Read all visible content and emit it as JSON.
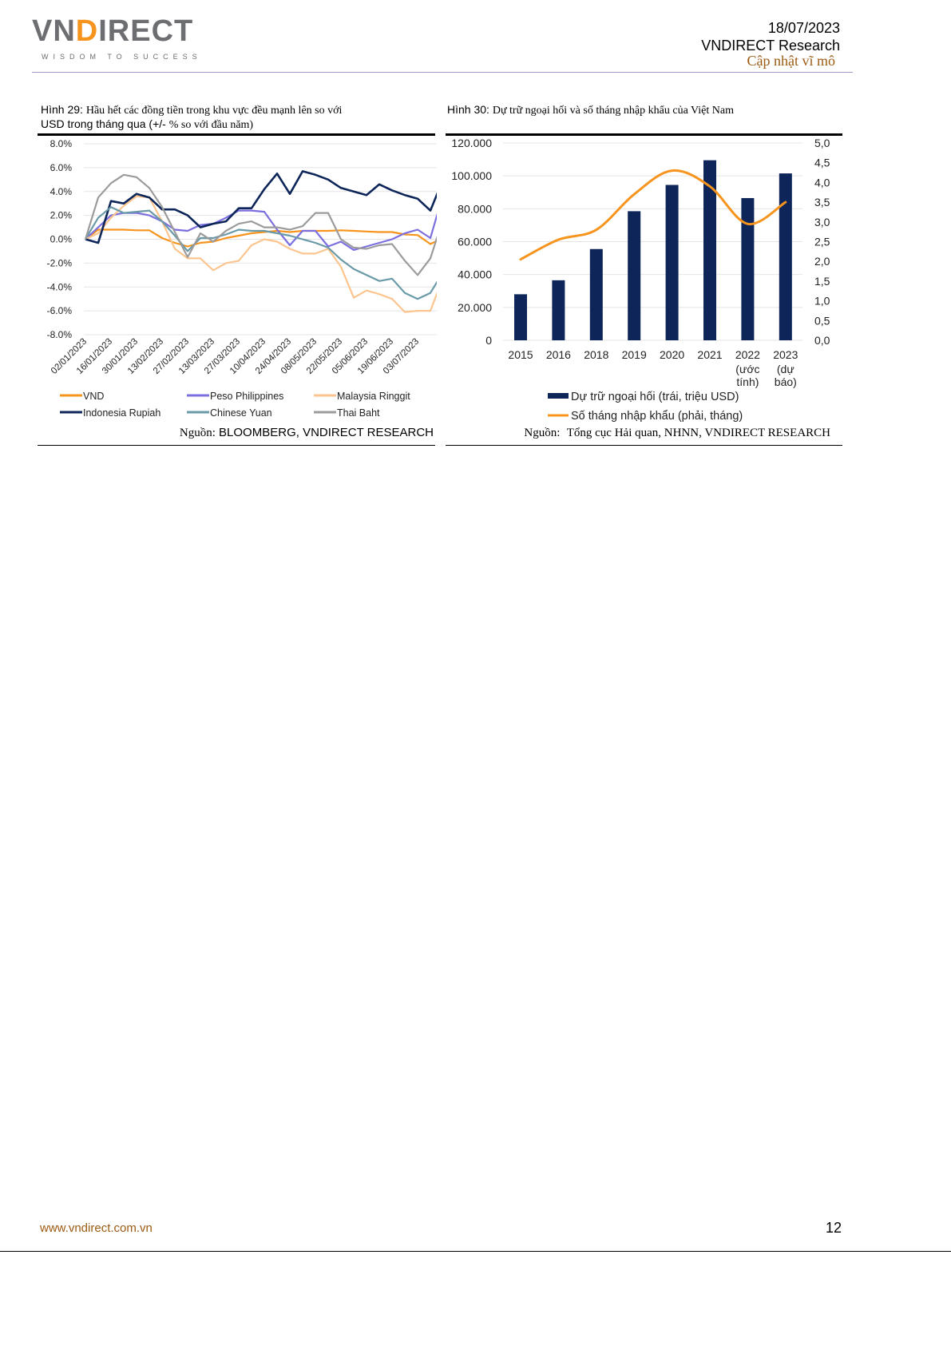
{
  "header": {
    "logo_text": "VNDIRECT",
    "tagline": "WISDOM TO SUCCESS",
    "date": "18/07/2023",
    "company": "VNDIRECT Research",
    "section": "Cập nhật vĩ mô",
    "accent_color": "#9c5a12"
  },
  "figure29": {
    "prefix": "Hình 29:",
    "caption_line1": "Hầu hết các đồng tiền trong khu vực đều mạnh lên so với",
    "caption_line2_prefix": "USD trong tháng qua (+/-",
    "caption_line2_rest": "% so với đầu năm)",
    "source_prefix": "Nguồn:",
    "source_rest": "BLOOMBERG, VNDIRECT RESEARCH"
  },
  "figure30": {
    "prefix": "Hình 30:",
    "caption": "Dự trữ ngoại hối và số tháng nhập khẩu của Việt Nam",
    "source_prefix": "Nguồn:",
    "source_rest": "Tổng cục Hải quan, NHNN, VNDIRECT RESEARCH"
  },
  "chart_data": [
    {
      "type": "line",
      "ylim": [
        -8,
        8
      ],
      "yticks": [
        "8.0%",
        "6.0%",
        "4.0%",
        "2.0%",
        "0.0%",
        "-2.0%",
        "-4.0%",
        "-6.0%",
        "-8.0%"
      ],
      "ytick_values": [
        8,
        6,
        4,
        2,
        0,
        -2,
        -4,
        -6,
        -8
      ],
      "xticks": [
        "02/01/2023",
        "16/01/2023",
        "30/01/2023",
        "13/02/2023",
        "27/02/2023",
        "13/03/2023",
        "27/03/2023",
        "10/04/2023",
        "24/04/2023",
        "08/05/2023",
        "22/05/2023",
        "05/06/2023",
        "19/06/2023",
        "03/07/2023"
      ],
      "grid": true,
      "legend_position": "bottom",
      "x": [
        "02/01/2023",
        "09/01/2023",
        "16/01/2023",
        "23/01/2023",
        "30/01/2023",
        "06/02/2023",
        "13/02/2023",
        "20/02/2023",
        "27/02/2023",
        "06/03/2023",
        "13/03/2023",
        "20/03/2023",
        "27/03/2023",
        "03/04/2023",
        "10/04/2023",
        "17/04/2023",
        "24/04/2023",
        "01/05/2023",
        "08/05/2023",
        "15/05/2023",
        "22/05/2023",
        "29/05/2023",
        "05/06/2023",
        "12/06/2023",
        "19/06/2023",
        "26/06/2023",
        "03/07/2023",
        "10/07/2023",
        "14/07/2023"
      ],
      "series": [
        {
          "name": "VND",
          "color": "#f7941d",
          "values": [
            0,
            0.8,
            0.8,
            0.8,
            0.75,
            0.75,
            0.1,
            -0.3,
            -0.6,
            -0.3,
            -0.2,
            0.1,
            0.3,
            0.5,
            0.6,
            0.7,
            0.6,
            0.7,
            0.7,
            0.7,
            0.75,
            0.7,
            0.65,
            0.6,
            0.6,
            0.4,
            0.35,
            -0.4,
            -0.1
          ]
        },
        {
          "name": "Peso Philippines",
          "color": "#7b6fe0",
          "values": [
            0,
            1.0,
            2.0,
            2.2,
            2.2,
            2.0,
            1.5,
            0.8,
            0.7,
            1.2,
            1.3,
            1.8,
            2.4,
            2.4,
            2.3,
            0.8,
            -0.5,
            0.7,
            0.7,
            -0.6,
            -0.2,
            -0.9,
            -0.6,
            -0.3,
            0,
            0.5,
            0.8,
            0.1,
            2.2
          ]
        },
        {
          "name": "Malaysia Ringgit",
          "color": "#fcc58f",
          "values": [
            0,
            0.5,
            1.8,
            2.8,
            3.6,
            3.5,
            1.5,
            -0.8,
            -1.6,
            -1.6,
            -2.6,
            -2.0,
            -1.8,
            -0.5,
            0,
            -0.2,
            -0.8,
            -1.2,
            -1.2,
            -0.8,
            -2.3,
            -4.9,
            -4.3,
            -4.6,
            -5.0,
            -6.1,
            -6.0,
            -6.0,
            -4.4
          ]
        },
        {
          "name": "Indonesia Rupiah",
          "color": "#0d2559",
          "values": [
            0,
            -0.3,
            3.2,
            3.0,
            3.8,
            3.5,
            2.5,
            2.5,
            2.0,
            1.0,
            1.3,
            1.5,
            2.6,
            2.6,
            4.2,
            5.5,
            3.8,
            5.7,
            5.4,
            5.0,
            4.3,
            4.0,
            3.7,
            4.6,
            4.1,
            3.7,
            3.4,
            2.4,
            3.9
          ]
        },
        {
          "name": "Chinese Yuan",
          "color": "#6a9aa8",
          "values": [
            0,
            1.8,
            2.7,
            2.2,
            2.3,
            2.4,
            1.5,
            0.3,
            -1.0,
            0.1,
            0.1,
            0.4,
            0.8,
            0.7,
            0.7,
            0.5,
            0.3,
            0.0,
            -0.3,
            -0.7,
            -1.7,
            -2.5,
            -3.0,
            -3.5,
            -3.3,
            -4.5,
            -5.0,
            -4.5,
            -3.5
          ]
        },
        {
          "name": "Thai Baht",
          "color": "#9b9b9b",
          "values": [
            0,
            3.5,
            4.7,
            5.4,
            5.2,
            4.3,
            2.7,
            0.6,
            -1.5,
            0.5,
            -0.2,
            0.7,
            1.3,
            1.5,
            1.0,
            1.0,
            0.8,
            1.1,
            2.2,
            2.2,
            0.0,
            -0.7,
            -0.8,
            -0.5,
            -0.4,
            -1.8,
            -3.0,
            -1.6,
            0.3
          ]
        }
      ]
    },
    {
      "type": "bar",
      "categories": [
        "2015",
        "2016",
        "2018",
        "2019",
        "2020",
        "2021",
        "2022",
        "2023"
      ],
      "category_sublabels": [
        [],
        [],
        [],
        [],
        [],
        [],
        [
          "(ước",
          "tính)"
        ],
        [
          "(dự",
          "báo)"
        ]
      ],
      "ylim_left": [
        0,
        120000
      ],
      "yticks_left": [
        "120.000",
        "100.000",
        "80.000",
        "60.000",
        "40.000",
        "20.000",
        "0"
      ],
      "ytick_values_left": [
        120000,
        100000,
        80000,
        60000,
        40000,
        20000,
        0
      ],
      "ylim_right": [
        0,
        5
      ],
      "yticks_right": [
        "5,0",
        "4,5",
        "4,0",
        "3,5",
        "3,0",
        "2,5",
        "2,0",
        "1,5",
        "1,0",
        "0,5",
        "0,0"
      ],
      "ytick_values_right": [
        5,
        4.5,
        4,
        3.5,
        3,
        2.5,
        2,
        1.5,
        1,
        0.5,
        0
      ],
      "grid": true,
      "legend_position": "bottom",
      "series": [
        {
          "name": "Dự trữ ngoại hối (trái, triệu USD)",
          "type": "bar",
          "axis": "left",
          "color": "#0d2559",
          "values": [
            28000,
            36500,
            55500,
            78500,
            94500,
            109500,
            86500,
            101500
          ]
        },
        {
          "name": "Số tháng nhập khẩu (phải, tháng)",
          "type": "line",
          "axis": "right",
          "color": "#f7941d",
          "values": [
            2.05,
            2.55,
            2.8,
            3.7,
            4.3,
            3.9,
            2.95,
            3.5
          ]
        }
      ]
    }
  ],
  "footer": {
    "website": "www.vndirect.com.vn",
    "page_number": "12"
  }
}
